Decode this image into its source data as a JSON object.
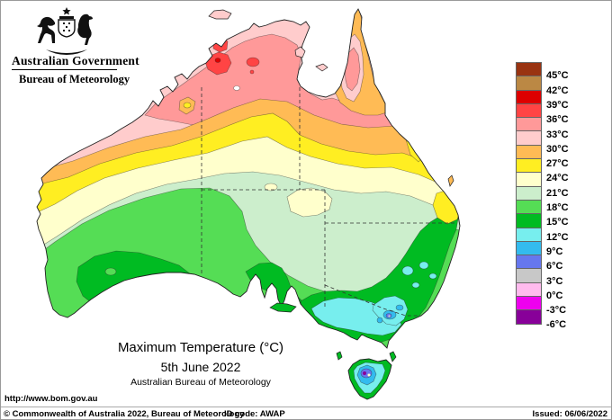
{
  "header": {
    "government": "Australian Government",
    "bureau": "Bureau of Meteorology"
  },
  "title": {
    "main": "Maximum Temperature (°C)",
    "date": "5th June 2022",
    "org": "Australian Bureau of Meteorology"
  },
  "footer": {
    "url": "http://www.bom.gov.au",
    "copyright": "© Commonwealth of Australia 2022, Bureau of Meteorology",
    "id_code": "ID code: AWAP",
    "issued": "Issued: 06/06/2022"
  },
  "legend": {
    "unit": "°C",
    "bands": [
      {
        "label": "45°C",
        "color": "#993311"
      },
      {
        "label": "42°C",
        "color": "#bb8844"
      },
      {
        "label": "39°C",
        "color": "#dd0000"
      },
      {
        "label": "36°C",
        "color": "#ff4444"
      },
      {
        "label": "33°C",
        "color": "#ff9999"
      },
      {
        "label": "30°C",
        "color": "#ffcccc"
      },
      {
        "label": "27°C",
        "color": "#ffbb55"
      },
      {
        "label": "24°C",
        "color": "#ffee22"
      },
      {
        "label": "21°C",
        "color": "#ffffcc"
      },
      {
        "label": "18°C",
        "color": "#cceecc"
      },
      {
        "label": "15°C",
        "color": "#55dd55"
      },
      {
        "label": "12°C",
        "color": "#00bb22"
      },
      {
        "label": "9°C",
        "color": "#77eeee"
      },
      {
        "label": "6°C",
        "color": "#33bbee"
      },
      {
        "label": "3°C",
        "color": "#6677ee"
      },
      {
        "label": "0°C",
        "color": "#c8c8c8"
      },
      {
        "label": "-3°C",
        "color": "#ffbbee"
      },
      {
        "label": "-6°C",
        "color": "#ee00ee"
      },
      {
        "label": "",
        "color": "#880099"
      }
    ]
  }
}
